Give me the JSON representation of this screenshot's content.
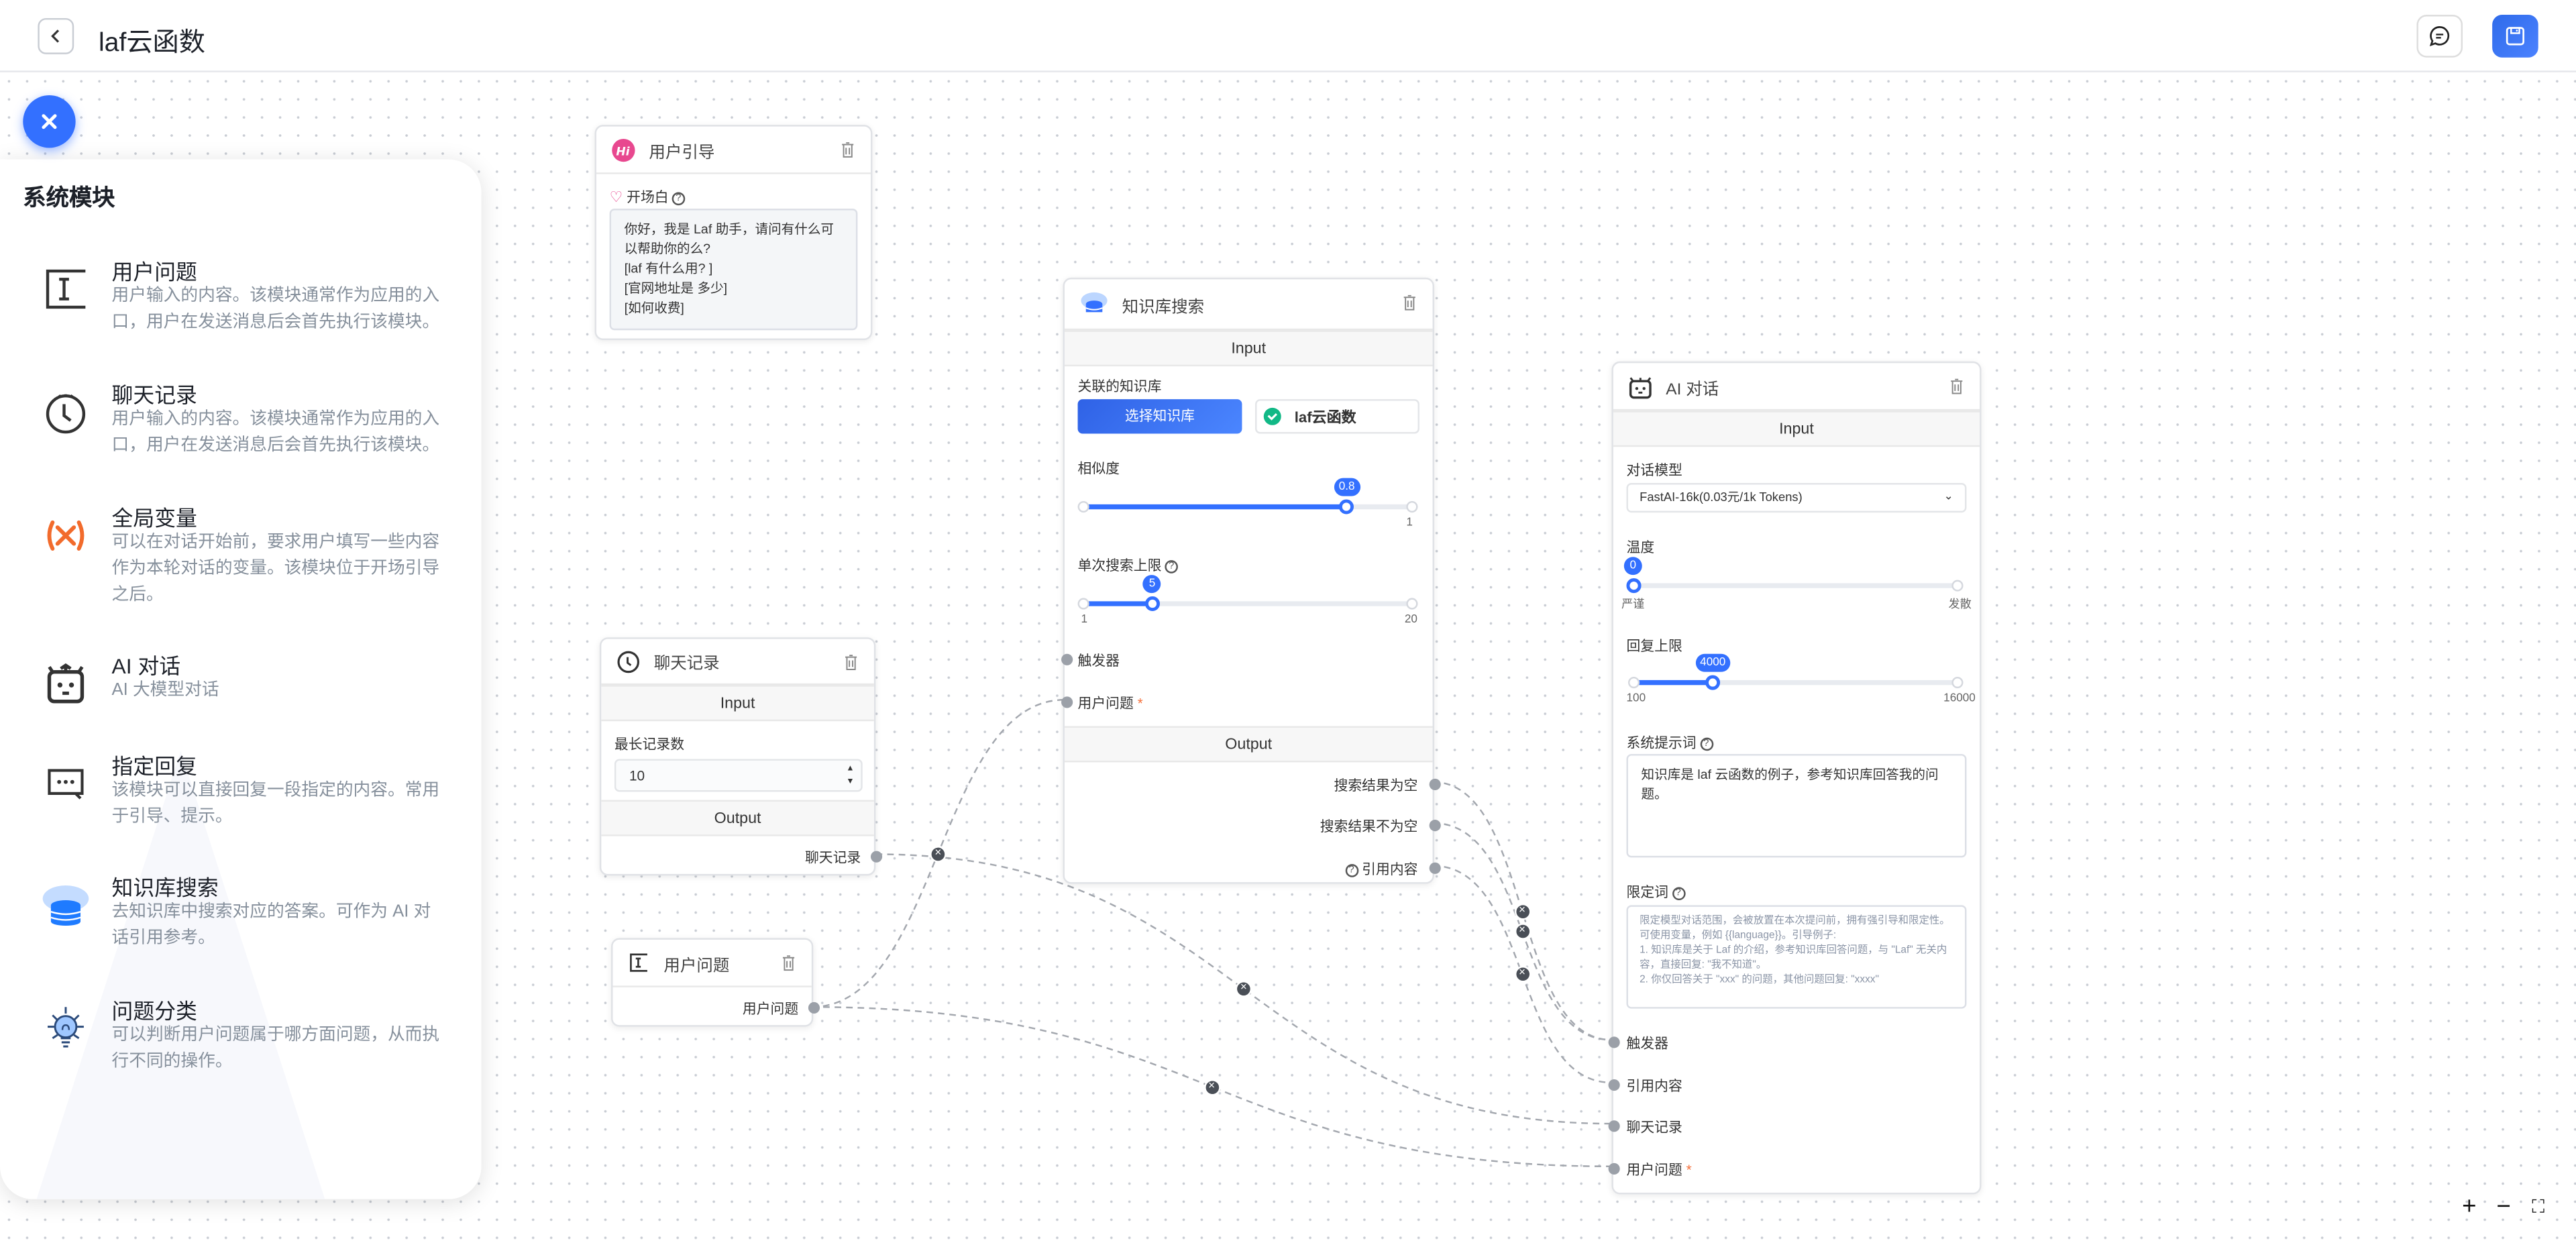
{
  "header": {
    "title": "laf云函数",
    "back_icon": "chevron-left-icon",
    "chat_icon": "message-icon",
    "save_icon": "save-icon",
    "save_color": "#3370ff"
  },
  "panel": {
    "title": "系统模块",
    "modules": [
      {
        "title": "用户问题",
        "desc": "用户输入的内容。该模块通常作为应用的入口，用户在发送消息后会首先执行该模块。",
        "icon": "text-cursor-icon"
      },
      {
        "title": "聊天记录",
        "desc": "用户输入的内容。该模块通常作为应用的入口，用户在发送消息后会首先执行该模块。",
        "icon": "clock-icon"
      },
      {
        "title": "全局变量",
        "desc": "可以在对话开始前，要求用户填写一些内容作为本轮对话的变量。该模块位于开场引导之后。",
        "icon": "variable-icon"
      },
      {
        "title": "AI 对话",
        "desc": "AI 大模型对话",
        "icon": "robot-icon"
      },
      {
        "title": "指定回复",
        "desc": "该模块可以直接回复一段指定的内容。常用于引导、提示。",
        "icon": "chat-dots-icon"
      },
      {
        "title": "知识库搜索",
        "desc": "去知识库中搜索对应的答案。可作为 AI 对话引用参考。",
        "icon": "database-cloud-icon"
      },
      {
        "title": "问题分类",
        "desc": "可以判断用户问题属于哪方面问题，从而执行不同的操作。",
        "icon": "lightbulb-icon"
      }
    ]
  },
  "nodes": {
    "guide": {
      "title": "用户引导",
      "icon": "hi-icon",
      "label": "开场白",
      "text": "你好，我是 Laf 助手，请问有什么可以帮助你的么?\n[laf 有什么用? ]\n[官网地址是 多少]\n[如何收费]"
    },
    "kb": {
      "title": "知识库搜索",
      "input": "Input",
      "output": "Output",
      "linked_label": "关联的知识库",
      "select_btn": "选择知识库",
      "kb_name": "laf云函数",
      "similarity": {
        "label": "相似度",
        "value": 0.8,
        "min": 0,
        "max": 1,
        "max_label": "1"
      },
      "limit": {
        "label": "单次搜索上限",
        "value": 5,
        "min": 1,
        "max": 20,
        "min_label": "1",
        "max_label": "20"
      },
      "inputs": [
        "触发器",
        "用户问题"
      ],
      "outputs": [
        "搜索结果为空",
        "搜索结果不为空",
        "引用内容"
      ]
    },
    "ai": {
      "title": "AI 对话",
      "input": "Input",
      "model_label": "对话模型",
      "model": "FastAI-16k(0.03元/1k Tokens)",
      "temperature": {
        "label": "温度",
        "value": 0,
        "level": 0,
        "min_label": "严谨",
        "max_label": "发散"
      },
      "max_tokens": {
        "label": "回复上限",
        "value": 4000,
        "min": 100,
        "max": 16000,
        "min_label": "100",
        "max_label": "16000"
      },
      "system_label": "系统提示词",
      "system_prompt": "知识库是 laf 云函数的例子，参考知识库回答我的问题。",
      "limit_label": "限定词",
      "limit_placeholder": "限定模型对话范围，会被放置在本次提问前，拥有强引导和限定性。可使用变量，例如 {{language}}。引导例子:\n1. 知识库是关于 Laf 的介绍，参考知识库回答问题，与 \"Laf\" 无关内容，直接回复: \"我不知道\"。\n2. 你仅回答关于 \"xxx\" 的问题，其他问题回复: \"xxxx\"",
      "inputs": [
        "触发器",
        "引用内容",
        "聊天记录",
        "用户问题"
      ]
    },
    "history": {
      "title": "聊天记录",
      "input": "Input",
      "output": "Output",
      "max_label": "最长记录数",
      "max_value": "10",
      "out": "聊天记录"
    },
    "question": {
      "title": "用户问题",
      "out": "用户问题"
    }
  },
  "edges": [
    {
      "from": "question.用户问题",
      "to": "kb.用户问题"
    },
    {
      "from": "question.用户问题",
      "to": "ai.用户问题"
    },
    {
      "from": "history.聊天记录",
      "to": "ai.聊天记录"
    },
    {
      "from": "kb.搜索结果为空",
      "to": "ai.触发器"
    },
    {
      "from": "kb.搜索结果不为空",
      "to": "ai.触发器"
    },
    {
      "from": "kb.引用内容",
      "to": "ai.引用内容"
    }
  ],
  "zoom_controls": [
    "+",
    "−",
    "⛶"
  ]
}
